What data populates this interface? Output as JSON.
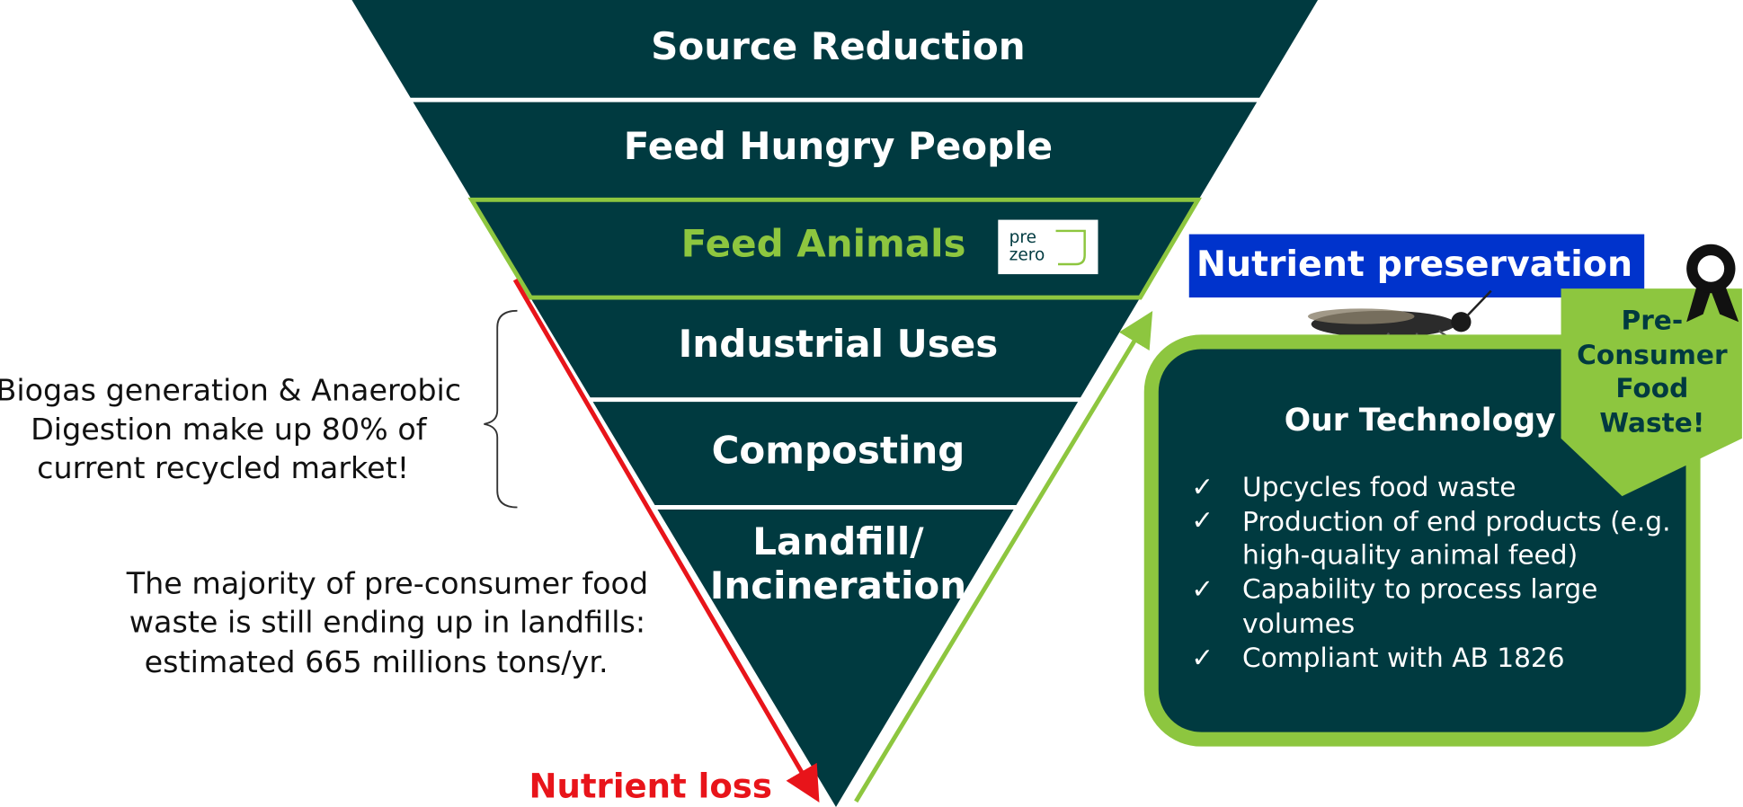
{
  "pyramid": {
    "levels": [
      "Source Reduction",
      "Feed Hungry People",
      "Feed Animals",
      "Industrial Uses",
      "Composting",
      "Landfill/",
      "Incineration"
    ],
    "logo": [
      "pre",
      "zero"
    ]
  },
  "left_notes": {
    "biogas": [
      "Biogas generation & Anaerobic",
      "Digestion make up 80% of",
      "current recycled market!"
    ],
    "majority": [
      "The majority of pre-consumer food",
      "waste is still ending up in landfills:",
      "estimated 665 millions tons/yr."
    ]
  },
  "arrows": {
    "loss": "Nutrient loss",
    "preservation": "Nutrient preservation"
  },
  "technology": {
    "title": "Our Technology",
    "bullets": [
      "Upcycles food waste",
      "Production of end products (e.g.",
      "high-quality animal feed)",
      "Capability to process large",
      "volumes",
      "Compliant with AB 1826"
    ]
  },
  "badge": [
    "Pre-",
    "Consumer",
    "Food",
    "Waste!"
  ]
}
